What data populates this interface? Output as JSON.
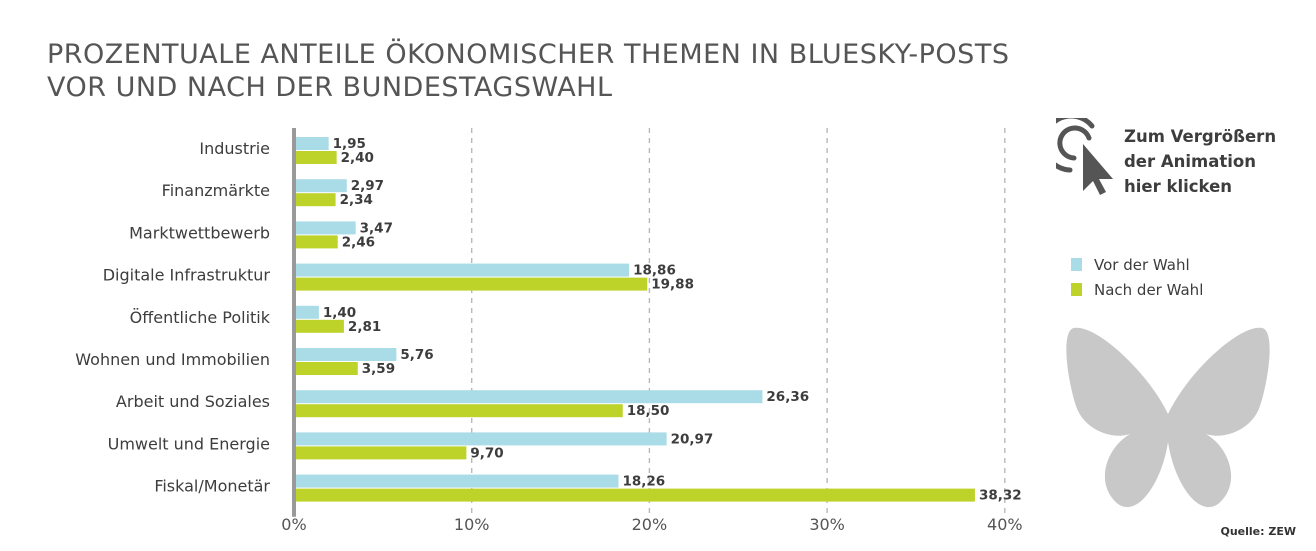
{
  "title_lines": [
    "PROZENTUALE ANTEILE ÖKONOMISCHER THEMEN IN BLUESKY-POSTS",
    "VOR UND NACH DER BUNDESTAGSWAHL"
  ],
  "cta_lines": [
    "Zum Vergrößern",
    "der Animation",
    "hier klicken"
  ],
  "source": "Quelle: ZEW",
  "colors": {
    "before": "#a9dce6",
    "after": "#bed32a",
    "grid": "#b8b8b8",
    "axis": "#9a9a9a",
    "text": "#3d3d3d",
    "butterfly": "#c8c8c8"
  },
  "chart_data": {
    "type": "bar",
    "orientation": "horizontal",
    "title": "PROZENTUALE ANTEILE ÖKONOMISCHER THEMEN IN BLUESKY-POSTS VOR UND NACH DER BUNDESTAGSWAHL",
    "categories": [
      "Industrie",
      "Finanzmärkte",
      "Marktwettbewerb",
      "Digitale Infrastruktur",
      "Öffentliche Politik",
      "Wohnen und Immobilien",
      "Arbeit und Soziales",
      "Umwelt und Energie",
      "Fiskal/Monetär"
    ],
    "series": [
      {
        "name": "Vor der Wahl",
        "values": [
          1.95,
          2.97,
          3.47,
          18.86,
          1.4,
          5.76,
          26.36,
          20.97,
          18.26
        ],
        "labels": [
          "1,95",
          "2,97",
          "3,47",
          "18,86",
          "1,40",
          "5,76",
          "26,36",
          "20,97",
          "18,26"
        ]
      },
      {
        "name": "Nach der Wahl",
        "values": [
          2.4,
          2.34,
          2.46,
          19.88,
          2.81,
          3.59,
          18.5,
          9.7,
          38.32
        ],
        "labels": [
          "2,40",
          "2,34",
          "2,46",
          "19,88",
          "2,81",
          "3,59",
          "18,50",
          "9,70",
          "38,32"
        ]
      }
    ],
    "xlim": [
      0,
      40
    ],
    "xticks": [
      0,
      10,
      20,
      30,
      40
    ],
    "xtick_labels": [
      "0%",
      "10%",
      "20%",
      "30%",
      "40%"
    ],
    "grid": "vertical dashed",
    "legend_position": "right"
  }
}
